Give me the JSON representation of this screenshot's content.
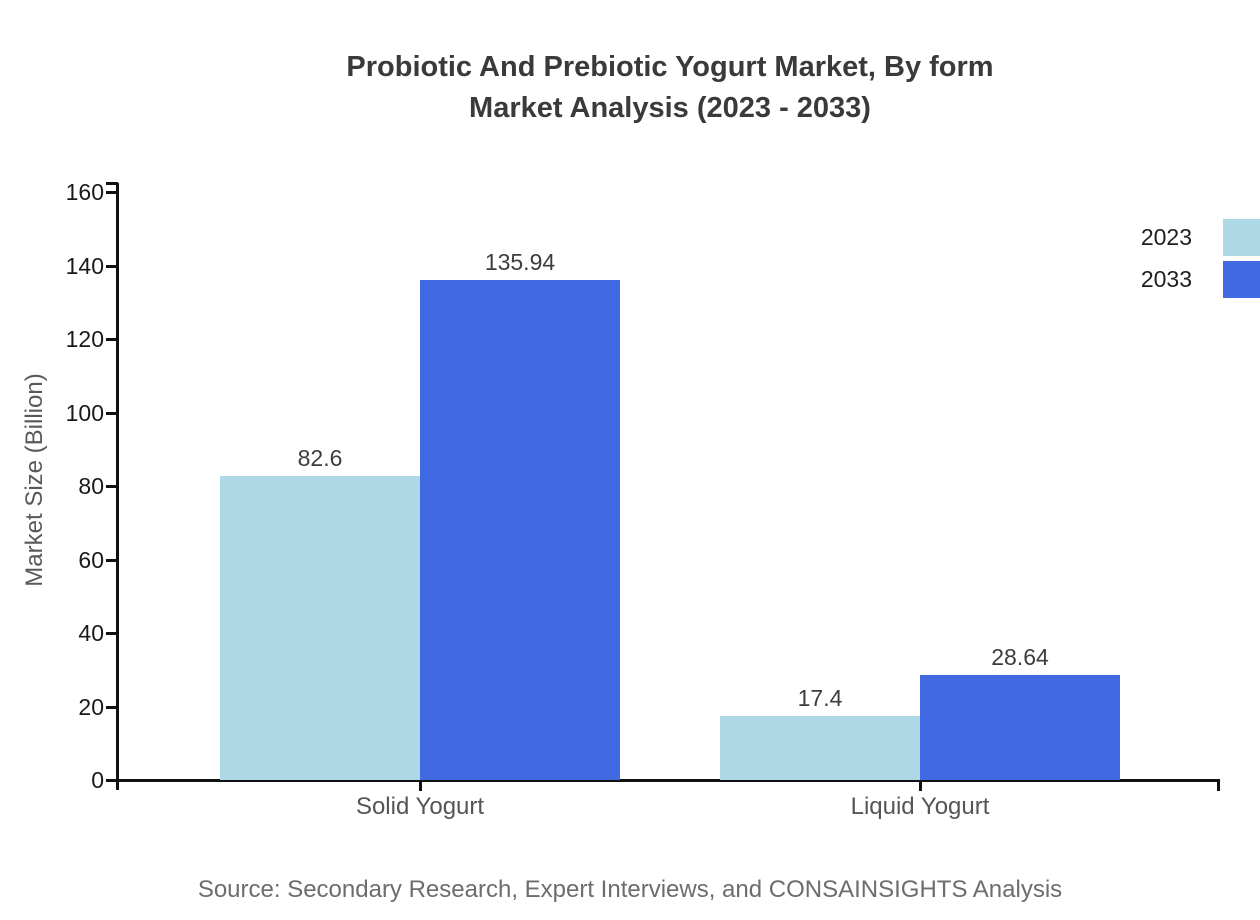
{
  "title": {
    "line1": "Probiotic And Prebiotic Yogurt Market, By form",
    "line2": "Market Analysis (2023 - 2033)"
  },
  "chart_data": {
    "type": "bar",
    "categories": [
      "Solid Yogurt",
      "Liquid Yogurt"
    ],
    "series": [
      {
        "name": "2023",
        "color": "#ADD8E6",
        "values": [
          82.6,
          17.4
        ]
      },
      {
        "name": "2033",
        "color": "#4169E1",
        "values": [
          135.94,
          28.64
        ]
      }
    ],
    "title": "Probiotic And Prebiotic Yogurt Market, By form Market Analysis (2023 - 2033)",
    "xlabel": "",
    "ylabel": "Market Size (Billion)",
    "ylim": [
      0,
      160
    ],
    "yticks": [
      0,
      20,
      40,
      60,
      80,
      100,
      120,
      140,
      160
    ],
    "grid": false,
    "legend_position": "top-right"
  },
  "source": "Source: Secondary Research, Expert Interviews, and CONSAINSIGHTS Analysis"
}
